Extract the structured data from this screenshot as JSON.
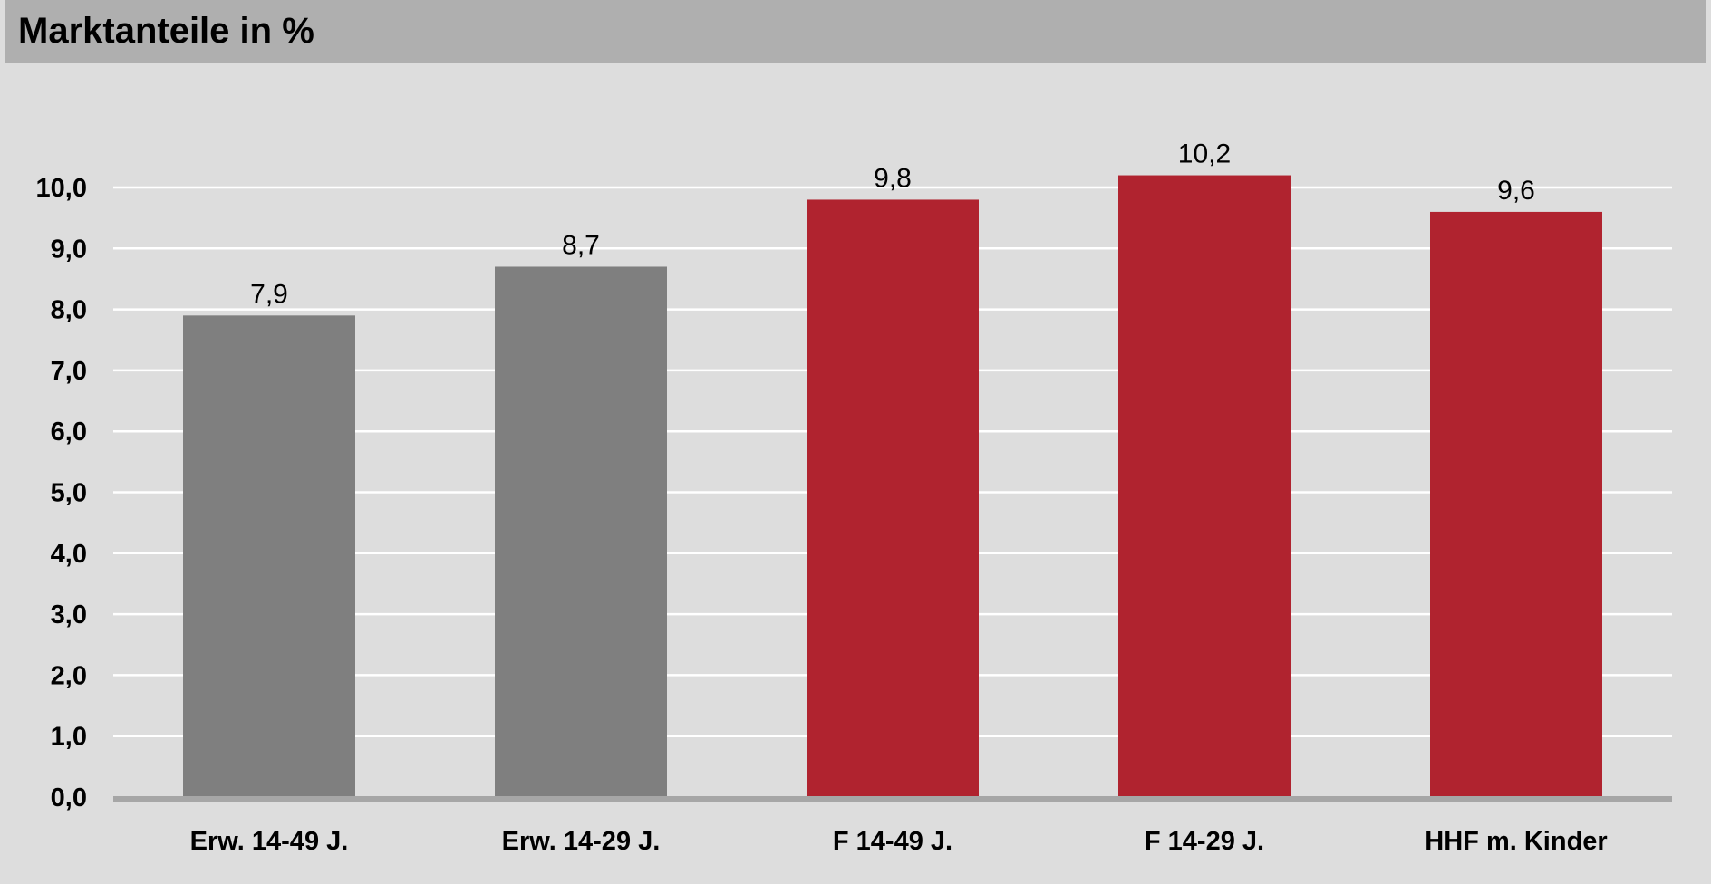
{
  "title": "Marktanteile in %",
  "colors": {
    "background": "#dddddd",
    "title_bar": "#afafaf",
    "gridline": "#ffffff",
    "axis": "#a6a6a6",
    "gray_bar": "#7f7f7f",
    "red_bar": "#b0232f"
  },
  "chart_data": {
    "type": "bar",
    "title": "Marktanteile in %",
    "xlabel": "",
    "ylabel": "",
    "categories": [
      "Erw. 14-49 J.",
      "Erw. 14-29 J.",
      "F 14-49 J.",
      "F 14-29 J.",
      "HHF m. Kinder"
    ],
    "values": [
      7.9,
      8.7,
      9.8,
      10.2,
      9.6
    ],
    "value_labels": [
      "7,9",
      "8,7",
      "9,8",
      "10,2",
      "9,6"
    ],
    "bar_colors": [
      "#7f7f7f",
      "#7f7f7f",
      "#b0232f",
      "#b0232f",
      "#b0232f"
    ],
    "ylim": [
      0,
      10
    ],
    "yticks": [
      0,
      1,
      2,
      3,
      4,
      5,
      6,
      7,
      8,
      9,
      10
    ],
    "ytick_labels": [
      "0,0",
      "1,0",
      "2,0",
      "3,0",
      "4,0",
      "5,0",
      "6,0",
      "7,0",
      "8,0",
      "9,0",
      "10,0"
    ],
    "grid": true,
    "legend": "none"
  }
}
